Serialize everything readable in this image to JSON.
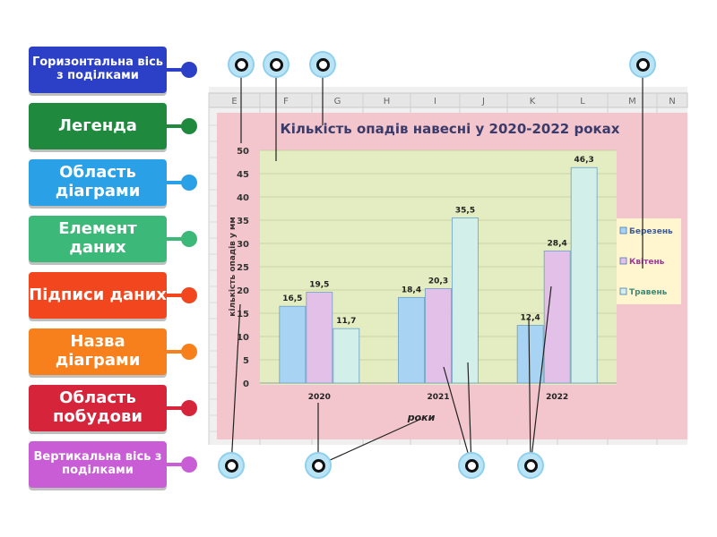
{
  "labels": [
    {
      "text": "Горизонтальна вісь з поділками",
      "color": "#2b3fc7",
      "size": "small"
    },
    {
      "text": "Легенда",
      "color": "#1f8a3e",
      "size": "big"
    },
    {
      "text": "Область діаграми",
      "color": "#2aa0e6",
      "size": "big"
    },
    {
      "text": "Елемент даних",
      "color": "#3cb878",
      "size": "big"
    },
    {
      "text": "Підписи даних",
      "color": "#f2461e",
      "size": "big"
    },
    {
      "text": "Назва діаграми",
      "color": "#f7801c",
      "size": "big"
    },
    {
      "text": "Область побудови",
      "color": "#d6243a",
      "size": "big"
    },
    {
      "text": "Вертикальна вісь з поділками",
      "color": "#c95dd6",
      "size": "small"
    }
  ],
  "spreadsheet_columns": [
    "E",
    "F",
    "G",
    "H",
    "I",
    "J",
    "K",
    "L",
    "M",
    "N"
  ],
  "chart_data": {
    "type": "bar",
    "title": "Кількість опадів навесні у 2020-2022 роках",
    "xlabel": "роки",
    "ylabel": "кількість опадів у мм",
    "categories": [
      "2020",
      "2021",
      "2022"
    ],
    "series": [
      {
        "name": "Березень",
        "values": [
          16.5,
          18.4,
          12.4
        ],
        "color": "#a9d3f2",
        "labels": [
          "16,5",
          "18,4",
          "12,4"
        ]
      },
      {
        "name": "Квітень",
        "values": [
          19.5,
          20.3,
          28.4
        ],
        "color": "#e3c0e8",
        "labels": [
          "19,5",
          "20,3",
          "28,4"
        ]
      },
      {
        "name": "Травень",
        "values": [
          11.7,
          35.5,
          46.3
        ],
        "color": "#d3efea",
        "labels": [
          "11,7",
          "35,5",
          "46,3"
        ]
      }
    ],
    "yticks": [
      0,
      5,
      10,
      15,
      20,
      25,
      30,
      35,
      40,
      45,
      50
    ],
    "ylim": [
      0,
      50
    ],
    "legend": "right",
    "grid": true,
    "chart_area_color": "#f2c6cc",
    "plot_area_color": "#e3edc1"
  }
}
